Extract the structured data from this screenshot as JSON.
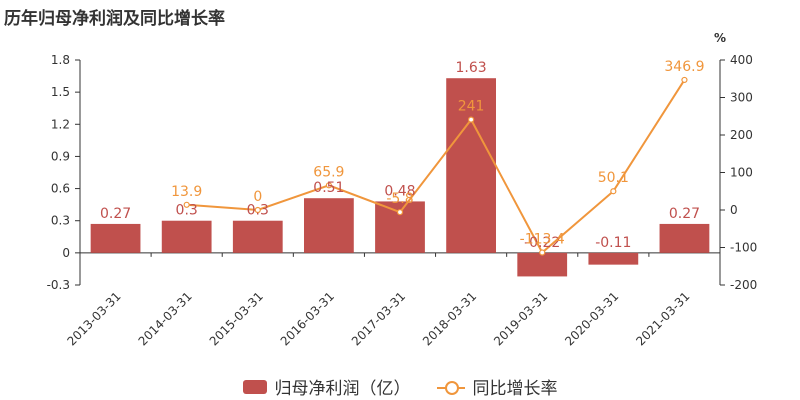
{
  "title": "历年归母净利润及同比增长率",
  "colors": {
    "bar": "#c0504d",
    "line": "#f0963c",
    "axis": "#333333"
  },
  "legend": {
    "bar_label": "归母净利润（亿）",
    "line_label": "同比增长率"
  },
  "chart_data": {
    "type": "bar",
    "title": "历年归母净利润及同比增长率",
    "categories": [
      "2013-03-31",
      "2014-03-31",
      "2015-03-31",
      "2016-03-31",
      "2017-03-31",
      "2018-03-31",
      "2019-03-31",
      "2020-03-31",
      "2021-03-31"
    ],
    "series": [
      {
        "name": "归母净利润（亿）",
        "type": "bar",
        "axis": "left",
        "values": [
          0.27,
          0.3,
          0.3,
          0.51,
          0.48,
          1.63,
          -0.22,
          -0.11,
          0.27
        ],
        "labels": [
          "0.27",
          "0.3",
          "0.3",
          "0.51",
          "0.48",
          "1.63",
          "-0.22",
          "-0.11",
          "0.27"
        ]
      },
      {
        "name": "同比增长率",
        "type": "line",
        "axis": "right",
        "values": [
          null,
          13.9,
          0,
          65.9,
          -5.8,
          241,
          -113.4,
          50.1,
          346.9
        ],
        "labels": [
          "",
          "13.9",
          "0",
          "65.9",
          "-5.8",
          "241",
          "-113.4",
          "50.1",
          "346.9"
        ]
      }
    ],
    "y_left": {
      "ticks": [
        "1.8",
        "1.5",
        "1.2",
        "0.9",
        "0.6",
        "0.3",
        "0",
        "-0.3"
      ],
      "min": -0.3,
      "max": 1.8
    },
    "y_right": {
      "ticks": [
        "400",
        "300",
        "200",
        "100",
        "0",
        "-100",
        "-200"
      ],
      "min": -200,
      "max": 400,
      "unit": "%"
    },
    "legend_position": "bottom",
    "grid": false
  }
}
